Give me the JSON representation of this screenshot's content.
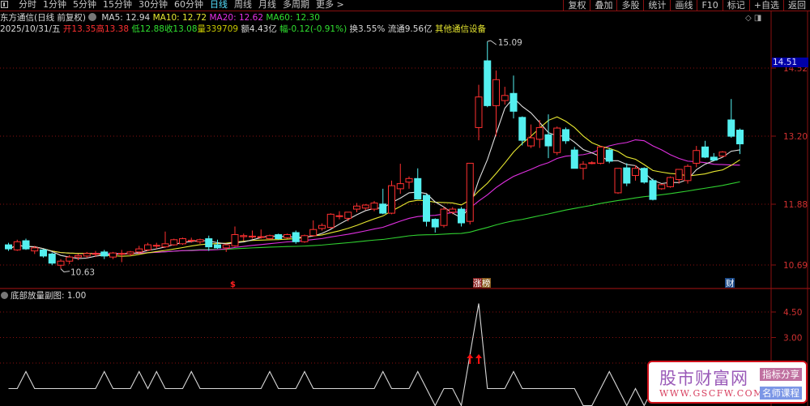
{
  "nav": {
    "periods": [
      "分时",
      "1分钟",
      "5分钟",
      "15分钟",
      "30分钟",
      "60分钟",
      "日线",
      "周线",
      "月线",
      "多周期",
      "更多 >"
    ],
    "active_period": "日线",
    "tools": [
      "复权",
      "叠加",
      "多股",
      "统计",
      "画线",
      "F10",
      "标记",
      "+自选",
      "返回"
    ]
  },
  "stock": {
    "title": "东方通信(日线 前复权)",
    "ma5": "MA5: 12.94",
    "ma10": "MA10: 12.72",
    "ma20": "MA20: 12.62",
    "ma60": "MA60: 12.30",
    "date": "2025/10/31/五",
    "open": "开13.35",
    "high": "高13.38",
    "low": "低12.88",
    "close": "收13.08",
    "volume": "量339709",
    "amount": "额4.43亿",
    "change": "幅-0.12(-0.91%)",
    "turnover": "换3.55%",
    "float": "流通9.56亿",
    "industry": "其他通信设备"
  },
  "axis": {
    "price_labels": [
      "14.52",
      "13.20",
      "11.88",
      "10.69"
    ],
    "current_price_tag": "14.51",
    "sub_labels": [
      "4.50",
      "3.00"
    ]
  },
  "annotations": {
    "high_label": "15.09",
    "low_label": "10.63",
    "marker_dollar": "$",
    "marker_zhang": "涨",
    "marker_bang": "榜",
    "marker_cai": "财"
  },
  "sub_chart": {
    "title": "底部放量副图",
    "value": ": 1.00"
  },
  "watermark": {
    "brand": "股市财富网",
    "url": "WWW.GSCFW.COM",
    "badge1": "指标分享",
    "badge2": "名师课程"
  },
  "colors": {
    "up": "#ff3030",
    "down": "#54f0f0",
    "ma5": "#e0e0e0",
    "ma10": "#e8e830",
    "ma20": "#e030e0",
    "ma60": "#30d030",
    "grid": "#8a1010"
  },
  "chart_data": {
    "type": "candlestick",
    "price_axis_ticks": [
      14.52,
      13.2,
      11.88,
      10.69
    ],
    "ohlc": [
      [
        11.1,
        11.14,
        10.98,
        11.02
      ],
      [
        11.0,
        11.2,
        10.98,
        11.16
      ],
      [
        11.18,
        11.22,
        11.0,
        11.02
      ],
      [
        10.98,
        11.08,
        10.92,
        11.04
      ],
      [
        11.0,
        11.02,
        10.85,
        10.88
      ],
      [
        10.92,
        10.95,
        10.7,
        10.74
      ],
      [
        10.7,
        10.82,
        10.63,
        10.78
      ],
      [
        10.78,
        10.9,
        10.72,
        10.86
      ],
      [
        10.86,
        10.92,
        10.8,
        10.89
      ],
      [
        10.88,
        10.96,
        10.84,
        10.93
      ],
      [
        10.92,
        10.98,
        10.86,
        10.93
      ],
      [
        10.96,
        11.0,
        10.82,
        10.88
      ],
      [
        10.86,
        10.96,
        10.82,
        10.94
      ],
      [
        10.93,
        11.0,
        10.76,
        10.93
      ],
      [
        10.92,
        10.98,
        10.88,
        10.96
      ],
      [
        10.96,
        11.08,
        10.92,
        11.02
      ],
      [
        11.0,
        11.14,
        10.98,
        11.1
      ],
      [
        11.08,
        11.14,
        11.02,
        11.09
      ],
      [
        11.06,
        11.36,
        11.04,
        11.12
      ],
      [
        11.1,
        11.22,
        11.08,
        11.2
      ],
      [
        11.12,
        11.24,
        11.1,
        11.22
      ],
      [
        11.18,
        11.24,
        11.14,
        11.19
      ],
      [
        11.16,
        11.22,
        11.12,
        11.2
      ],
      [
        11.22,
        11.28,
        10.98,
        11.06
      ],
      [
        11.1,
        11.2,
        11.02,
        11.04
      ],
      [
        11.04,
        11.12,
        10.96,
        11.1
      ],
      [
        11.08,
        11.46,
        11.06,
        11.3
      ],
      [
        11.26,
        11.32,
        11.18,
        11.28
      ],
      [
        11.26,
        11.38,
        11.22,
        11.27
      ],
      [
        11.26,
        11.4,
        11.22,
        11.26
      ],
      [
        11.22,
        11.3,
        11.2,
        11.28
      ],
      [
        11.3,
        11.32,
        11.2,
        11.22
      ],
      [
        11.24,
        11.32,
        11.22,
        11.3
      ],
      [
        11.34,
        11.38,
        11.12,
        11.16
      ],
      [
        11.16,
        11.3,
        11.14,
        11.28
      ],
      [
        11.28,
        11.58,
        11.26,
        11.4
      ],
      [
        11.42,
        11.52,
        11.38,
        11.48
      ],
      [
        11.44,
        11.72,
        11.42,
        11.7
      ],
      [
        11.66,
        11.76,
        11.6,
        11.67
      ],
      [
        11.62,
        11.74,
        11.56,
        11.74
      ],
      [
        11.8,
        11.92,
        11.74,
        11.86
      ],
      [
        11.82,
        11.9,
        11.78,
        11.88
      ],
      [
        11.8,
        11.96,
        11.76,
        11.92
      ],
      [
        11.9,
        12.2,
        11.7,
        11.72
      ],
      [
        11.72,
        12.36,
        11.7,
        12.26
      ],
      [
        12.2,
        12.69,
        12.1,
        12.3
      ],
      [
        12.33,
        12.44,
        12.2,
        12.4
      ],
      [
        12.4,
        12.6,
        12.0,
        12.0
      ],
      [
        12.07,
        12.1,
        11.46,
        11.56
      ],
      [
        11.6,
        11.62,
        11.34,
        11.45
      ],
      [
        11.48,
        11.84,
        11.44,
        11.8
      ],
      [
        11.74,
        11.84,
        11.7,
        11.8
      ],
      [
        11.8,
        11.84,
        11.46,
        11.53
      ],
      [
        11.56,
        12.7,
        11.5,
        12.7
      ],
      [
        13.4,
        14.24,
        13.15,
        14.0
      ],
      [
        14.71,
        15.09,
        13.8,
        13.83
      ],
      [
        13.83,
        14.52,
        13.23,
        14.34
      ],
      [
        13.93,
        14.2,
        13.85,
        14.03
      ],
      [
        14.07,
        14.42,
        13.58,
        13.72
      ],
      [
        13.6,
        13.62,
        13.05,
        13.15
      ],
      [
        13.04,
        13.46,
        13.0,
        13.2
      ],
      [
        13.17,
        13.55,
        13.0,
        13.4
      ],
      [
        13.26,
        13.66,
        12.8,
        13.04
      ],
      [
        12.91,
        13.42,
        12.86,
        13.39
      ],
      [
        13.36,
        13.4,
        13.08,
        13.14
      ],
      [
        12.96,
        13.02,
        12.6,
        12.6
      ],
      [
        12.6,
        12.74,
        12.38,
        12.68
      ],
      [
        12.7,
        12.74,
        12.68,
        12.71
      ],
      [
        12.7,
        13.04,
        12.68,
        13.02
      ],
      [
        12.96,
        13.0,
        12.7,
        12.74
      ],
      [
        12.12,
        12.6,
        12.1,
        12.6
      ],
      [
        12.61,
        12.7,
        12.25,
        12.31
      ],
      [
        12.46,
        12.66,
        12.36,
        12.6
      ],
      [
        12.6,
        12.62,
        12.3,
        12.33
      ],
      [
        12.36,
        12.4,
        11.97,
        11.99
      ],
      [
        12.2,
        12.3,
        12.18,
        12.28
      ],
      [
        12.24,
        12.44,
        12.22,
        12.42
      ],
      [
        12.38,
        12.56,
        12.3,
        12.58
      ],
      [
        12.36,
        12.68,
        12.3,
        12.64
      ],
      [
        12.7,
        13.04,
        12.62,
        12.95
      ],
      [
        13.02,
        13.14,
        12.8,
        12.82
      ],
      [
        12.82,
        12.9,
        12.76,
        12.76
      ],
      [
        12.84,
        12.94,
        12.82,
        12.92
      ],
      [
        13.55,
        13.96,
        13.2,
        13.23
      ],
      [
        13.35,
        13.38,
        12.88,
        13.08
      ]
    ],
    "sub_indicator": [
      0,
      0,
      1,
      0,
      0,
      0,
      0,
      0,
      0,
      0,
      0,
      1,
      0,
      0,
      0,
      1,
      0,
      1,
      0,
      0,
      0,
      1,
      0,
      0,
      0,
      0,
      0,
      0,
      0,
      0,
      1,
      0,
      0,
      0,
      1,
      0,
      0,
      0,
      0,
      0,
      0,
      0,
      0,
      1,
      0,
      0,
      0,
      1,
      0,
      -1,
      0,
      0,
      -1,
      2,
      5,
      0,
      0,
      0,
      1,
      0,
      0,
      0,
      0,
      0,
      0,
      0,
      -1,
      -1,
      0,
      1,
      0,
      -1,
      0,
      -1,
      0,
      0,
      0,
      0,
      0,
      0,
      0,
      0,
      0,
      0,
      1
    ],
    "signal_arrows_at": [
      53,
      54
    ],
    "sub_axis_ticks": [
      4.5,
      3.0,
      1.5
    ]
  }
}
